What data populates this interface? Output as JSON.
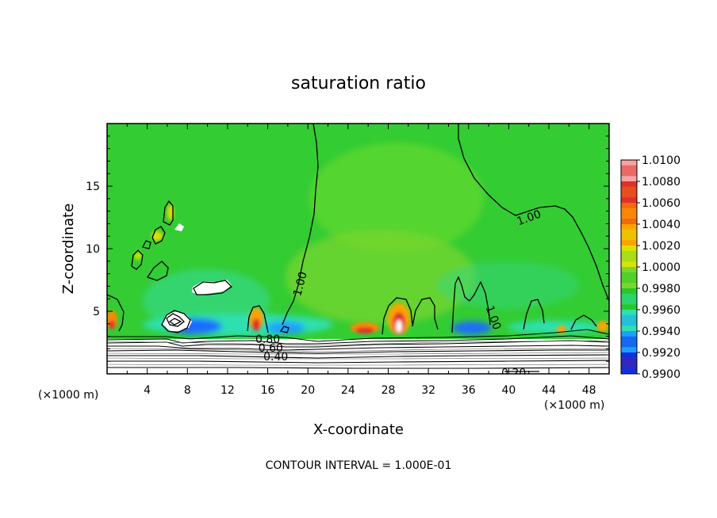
{
  "chart_data": {
    "type": "heatmap",
    "title": "saturation ratio",
    "xlabel": "X-coordinate",
    "ylabel": "Z-coordinate",
    "x_unit": "(×1000 m)",
    "z_unit": "(×1000 m)",
    "x_ticks": [
      4,
      8,
      12,
      16,
      20,
      24,
      28,
      32,
      36,
      40,
      44,
      48
    ],
    "z_ticks": [
      5,
      10,
      15
    ],
    "xlim": [
      0,
      50
    ],
    "zlim": [
      0,
      20
    ],
    "colorbar": {
      "labels": [
        "1.0100",
        "1.0080",
        "1.0060",
        "1.0040",
        "1.0020",
        "1.0000",
        "0.9980",
        "0.9960",
        "0.9940",
        "0.9920",
        "0.9900"
      ],
      "colors": [
        "#f5a3a3",
        "#e0302a",
        "#f06a10",
        "#ffa200",
        "#d8e400",
        "#7ad62e",
        "#28c828",
        "#2ee0b0",
        "#1aa0ff",
        "#1030e0",
        "#5020a0"
      ]
    },
    "contour_labels": [
      {
        "text": "1.00",
        "x": 19.2,
        "z": 7.2
      },
      {
        "text": "1.00",
        "x": 42.0,
        "z": 12.5
      },
      {
        "text": "1.00",
        "x": 38.5,
        "z": 4.5
      },
      {
        "text": "0.80",
        "x": 16.0,
        "z": 2.8
      },
      {
        "text": "0.60",
        "x": 16.3,
        "z": 2.1
      },
      {
        "text": "0.40",
        "x": 16.8,
        "z": 1.4
      },
      {
        "text": "0.20",
        "x": 40.5,
        "z": 0.1
      }
    ],
    "footer": "CONTOUR INTERVAL = 1.000E-01"
  }
}
